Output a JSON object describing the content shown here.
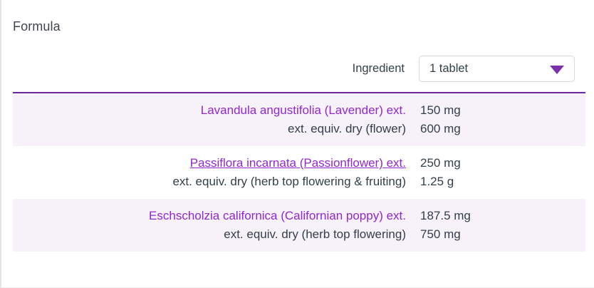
{
  "page": {
    "title": "Formula"
  },
  "header": {
    "column_label": "Ingredient",
    "dose_select": {
      "value": "1 tablet"
    }
  },
  "table": {
    "rows": [
      {
        "name": "Lavandula angustifolia (Lavender) ext.",
        "amount": "150 mg",
        "equiv_label": "ext. equiv. dry (flower)",
        "equiv_amount": "600 mg"
      },
      {
        "name": "Passiflora incarnata (Passionflower) ext.",
        "amount": "250 mg",
        "equiv_label": "ext. equiv. dry (herb top flowering & fruiting)",
        "equiv_amount": "1.25 g"
      },
      {
        "name": "Eschscholzia californica (Californian poppy) ext.",
        "amount": "187.5 mg",
        "equiv_label": "ext. equiv. dry (herb top flowering)",
        "equiv_amount": "750 mg"
      }
    ]
  },
  "colors": {
    "accent_purple": "#6d28a0",
    "ingredient_link_purple": "#9128c9",
    "shaded_row_bg": "#f7f1fa",
    "text_dark": "#333f49",
    "caret_purple": "#7b2fab"
  }
}
